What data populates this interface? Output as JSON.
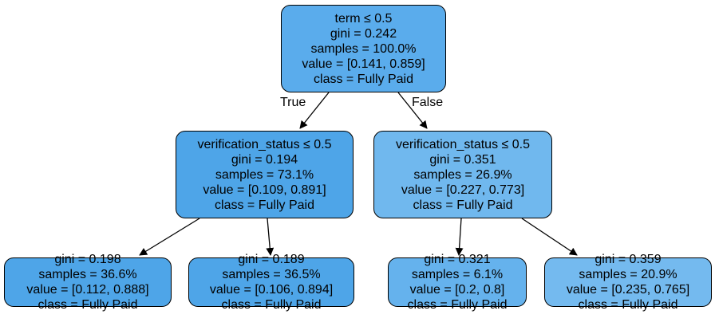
{
  "colors": {
    "n0": "#5aacec",
    "n1": "#4ea5e8",
    "n2": "#70b8ee",
    "n3": "#4ea5e8",
    "n4": "#4ea5e8",
    "n5": "#65b2ed",
    "n6": "#74baef",
    "edge": "#000000",
    "border": "#000000"
  },
  "edge_labels": {
    "true": "True",
    "false": "False"
  },
  "nodes": {
    "n0": {
      "split": "term ≤ 0.5",
      "gini": "gini = 0.242",
      "samples": "samples = 100.0%",
      "value": "value = [0.141, 0.859]",
      "class": "class = Fully Paid"
    },
    "n1": {
      "split": "verification_status ≤ 0.5",
      "gini": "gini = 0.194",
      "samples": "samples = 73.1%",
      "value": "value = [0.109, 0.891]",
      "class": "class = Fully Paid"
    },
    "n2": {
      "split": "verification_status ≤ 0.5",
      "gini": "gini = 0.351",
      "samples": "samples = 26.9%",
      "value": "value = [0.227, 0.773]",
      "class": "class = Fully Paid"
    },
    "n3": {
      "gini": "gini = 0.198",
      "samples": "samples = 36.6%",
      "value": "value = [0.112, 0.888]",
      "class": "class = Fully Paid"
    },
    "n4": {
      "gini": "gini = 0.189",
      "samples": "samples = 36.5%",
      "value": "value = [0.106, 0.894]",
      "class": "class = Fully Paid"
    },
    "n5": {
      "gini": "gini = 0.321",
      "samples": "samples = 6.1%",
      "value": "value = [0.2, 0.8]",
      "class": "class = Fully Paid"
    },
    "n6": {
      "gini": "gini = 0.359",
      "samples": "samples = 20.9%",
      "value": "value = [0.235, 0.765]",
      "class": "class = Fully Paid"
    }
  }
}
